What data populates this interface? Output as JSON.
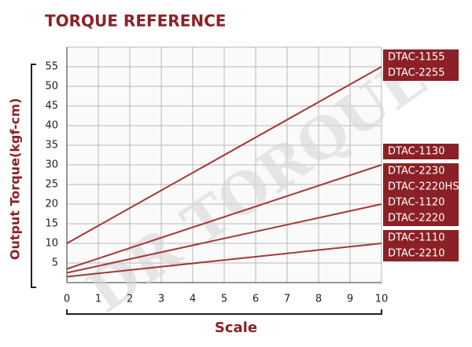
{
  "chart_data": {
    "type": "line",
    "title": "TORQUE REFERENCE",
    "x_label": "Scale",
    "y_label": "Output Torque(kgf-cm)",
    "watermark": "DR TORQUE",
    "x": [
      0,
      10
    ],
    "series": [
      {
        "color": "#a3383a",
        "values": [
          10,
          55
        ]
      },
      {
        "color": "#a3383a",
        "values": [
          3.5,
          30
        ]
      },
      {
        "color": "#a3383a",
        "values": [
          2.5,
          20
        ]
      },
      {
        "color": "#a3383a",
        "values": [
          1.5,
          10
        ]
      }
    ],
    "label_groups": [
      [
        "DTAC-1155",
        "DTAC-2255"
      ],
      [
        "DTAC-1130"
      ],
      [
        "DTAC-2230",
        "DTAC-2220HS"
      ],
      [
        "DTAC-1120",
        "DTAC-2220"
      ],
      [
        "DTAC-1110",
        "DTAC-2210"
      ]
    ],
    "label_color": "#8b2126",
    "xlim": [
      0,
      10
    ],
    "xticks": [
      0,
      1,
      2,
      3,
      4,
      5,
      6,
      7,
      8,
      9,
      10
    ],
    "ylim": [
      0,
      60
    ],
    "yticks": [
      5,
      10,
      15,
      20,
      25,
      30,
      35,
      40,
      45,
      50,
      55
    ],
    "grid": true
  }
}
